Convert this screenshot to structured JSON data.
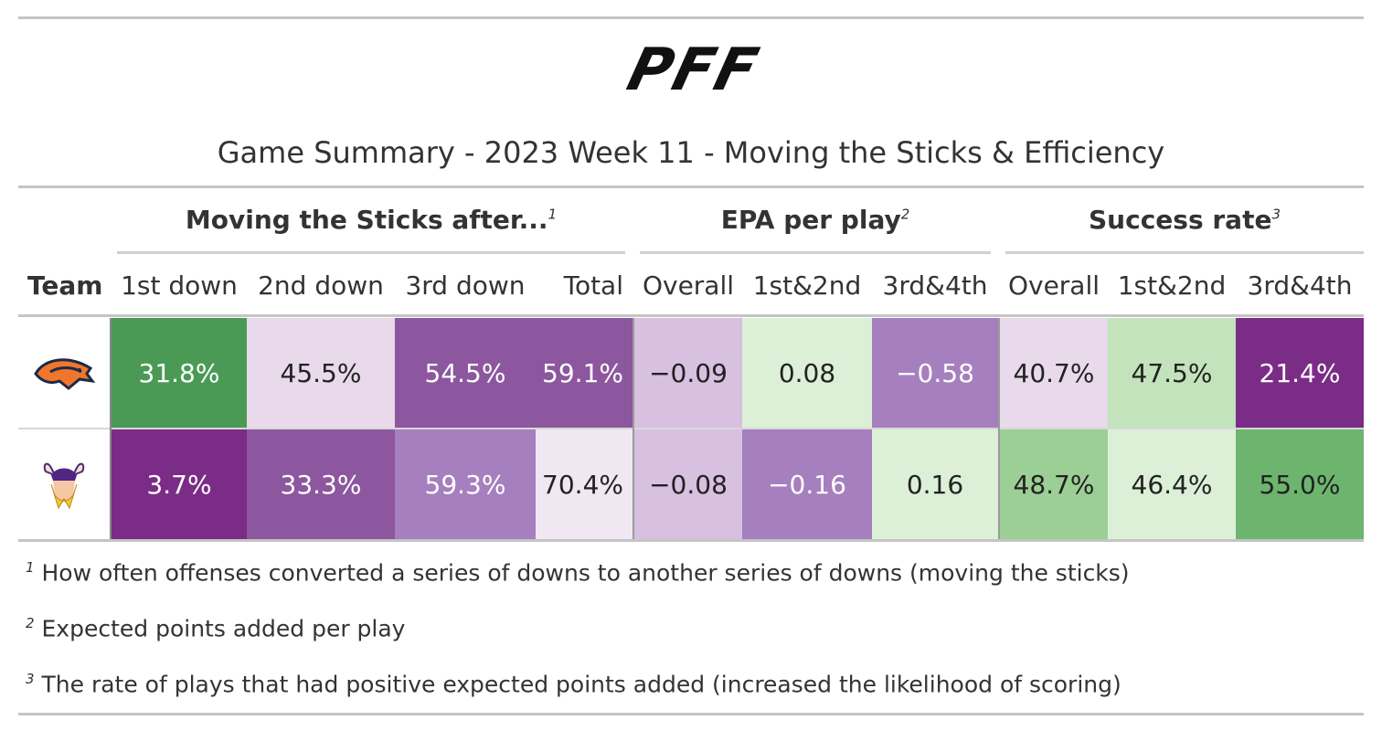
{
  "logo_text": "PFF",
  "title": "Game Summary - 2023 Week 11 - Moving the Sticks & Efficiency",
  "spanners": [
    {
      "label": "Moving the Sticks after...",
      "mark": "1"
    },
    {
      "label": "EPA per play",
      "mark": "2"
    },
    {
      "label": "Success rate",
      "mark": "3"
    }
  ],
  "columns": [
    "Team",
    "1st down",
    "2nd down",
    "3rd down",
    "Total",
    "Overall",
    "1st&2nd",
    "3rd&4th",
    "Overall",
    "1st&2nd",
    "3rd&4th"
  ],
  "chart_data": {
    "type": "table",
    "title": "Game Summary - 2023 Week 11 - Moving the Sticks & Efficiency",
    "columns": [
      "Team",
      "1st down",
      "2nd down",
      "3rd down",
      "Total",
      "Overall",
      "1st&2nd",
      "3rd&4th",
      "Overall",
      "1st&2nd",
      "3rd&4th"
    ],
    "rows": [
      {
        "team_logo": "broncos-logo",
        "cells": [
          {
            "text": "31.8%",
            "bg": "#4a9a55",
            "fg": "#ffffff"
          },
          {
            "text": "45.5%",
            "bg": "#e8d9eb",
            "fg": "#222222"
          },
          {
            "text": "54.5%",
            "bg": "#8c579e",
            "fg": "#ffffff"
          },
          {
            "text": "59.1%",
            "bg": "#8c579e",
            "fg": "#ffffff"
          },
          {
            "text": "−0.09",
            "bg": "#d7c0e0",
            "fg": "#222222"
          },
          {
            "text": "0.08",
            "bg": "#dcf0d8",
            "fg": "#222222"
          },
          {
            "text": "−0.58",
            "bg": "#a67fbe",
            "fg": "#ffffff"
          },
          {
            "text": "40.7%",
            "bg": "#e8d9eb",
            "fg": "#222222"
          },
          {
            "text": "47.5%",
            "bg": "#c2e3bc",
            "fg": "#222222"
          },
          {
            "text": "21.4%",
            "bg": "#7b2c86",
            "fg": "#ffffff"
          }
        ]
      },
      {
        "team_logo": "vikings-logo",
        "cells": [
          {
            "text": "3.7%",
            "bg": "#7b2c86",
            "fg": "#ffffff"
          },
          {
            "text": "33.3%",
            "bg": "#8c579e",
            "fg": "#ffffff"
          },
          {
            "text": "59.3%",
            "bg": "#a67fbe",
            "fg": "#ffffff"
          },
          {
            "text": "70.4%",
            "bg": "#f0e7f2",
            "fg": "#222222"
          },
          {
            "text": "−0.08",
            "bg": "#d7c0e0",
            "fg": "#222222"
          },
          {
            "text": "−0.16",
            "bg": "#a67fbe",
            "fg": "#ffffff"
          },
          {
            "text": "0.16",
            "bg": "#dcf0d8",
            "fg": "#222222"
          },
          {
            "text": "48.7%",
            "bg": "#9ccf96",
            "fg": "#222222"
          },
          {
            "text": "46.4%",
            "bg": "#dcf0d8",
            "fg": "#222222"
          },
          {
            "text": "55.0%",
            "bg": "#6db56e",
            "fg": "#222222"
          }
        ]
      }
    ]
  },
  "footnotes": [
    {
      "mark": "1",
      "text": "How often offenses converted a series of downs to another series of downs (moving the sticks)"
    },
    {
      "mark": "2",
      "text": "Expected points added per play"
    },
    {
      "mark": "3",
      "text": "The rate of plays that had positive expected points added (increased the likelihood of scoring)"
    }
  ]
}
